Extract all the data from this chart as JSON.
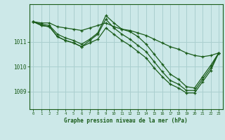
{
  "title": "Graphe pression niveau de la mer (hPa)",
  "background_color": "#cce8e8",
  "grid_color": "#aacfcf",
  "line_color": "#1a5c1a",
  "xlim": [
    -0.5,
    23.5
  ],
  "ylim": [
    1008.3,
    1012.5
  ],
  "yticks": [
    1009,
    1010,
    1011
  ],
  "xticks": [
    0,
    1,
    2,
    3,
    4,
    5,
    6,
    7,
    8,
    9,
    10,
    11,
    12,
    13,
    14,
    15,
    16,
    17,
    18,
    19,
    20,
    21,
    22,
    23
  ],
  "series": [
    {
      "x": [
        0,
        1,
        2,
        3,
        4,
        5,
        6,
        7,
        8,
        9,
        10,
        11,
        12,
        13,
        14,
        15,
        16,
        17,
        18,
        19,
        20,
        21,
        22,
        23
      ],
      "y": [
        1011.8,
        1011.75,
        1011.75,
        1011.6,
        1011.55,
        1011.5,
        1011.45,
        1011.55,
        1011.65,
        1011.75,
        1011.6,
        1011.5,
        1011.45,
        1011.35,
        1011.25,
        1011.1,
        1010.95,
        1010.8,
        1010.7,
        1010.55,
        1010.45,
        1010.4,
        1010.45,
        1010.55
      ]
    },
    {
      "x": [
        0,
        1,
        2,
        3,
        4,
        5,
        6,
        7,
        8,
        9,
        10,
        11,
        12,
        13,
        14,
        15,
        16,
        17,
        18,
        19,
        20,
        21,
        22,
        23
      ],
      "y": [
        1011.8,
        1011.7,
        1011.65,
        1011.3,
        1011.15,
        1011.05,
        1010.9,
        1011.1,
        1011.35,
        1012.05,
        1011.75,
        1011.5,
        1011.4,
        1011.2,
        1010.9,
        1010.5,
        1010.1,
        1009.7,
        1009.5,
        1009.2,
        1009.15,
        1009.6,
        1010.05,
        1010.55
      ]
    },
    {
      "x": [
        0,
        1,
        2,
        3,
        4,
        5,
        6,
        7,
        8,
        9,
        10,
        11,
        12,
        13,
        14,
        15,
        16,
        17,
        18,
        19,
        20,
        21,
        22,
        23
      ],
      "y": [
        1011.8,
        1011.65,
        1011.6,
        1011.2,
        1011.05,
        1010.95,
        1010.8,
        1011.05,
        1011.3,
        1011.9,
        1011.55,
        1011.3,
        1011.1,
        1010.85,
        1010.6,
        1010.2,
        1009.8,
        1009.45,
        1009.3,
        1009.05,
        1009.05,
        1009.5,
        1009.95,
        1010.55
      ]
    },
    {
      "x": [
        0,
        1,
        2,
        3,
        4,
        5,
        6,
        7,
        8,
        9,
        10,
        11,
        12,
        13,
        14,
        15,
        16,
        17,
        18,
        19,
        20,
        21,
        22,
        23
      ],
      "y": [
        1011.8,
        1011.65,
        1011.6,
        1011.2,
        1011.05,
        1010.95,
        1010.8,
        1010.95,
        1011.1,
        1011.55,
        1011.3,
        1011.05,
        1010.85,
        1010.6,
        1010.35,
        1009.95,
        1009.6,
        1009.3,
        1009.15,
        1008.95,
        1008.95,
        1009.4,
        1009.85,
        1010.55
      ]
    }
  ]
}
